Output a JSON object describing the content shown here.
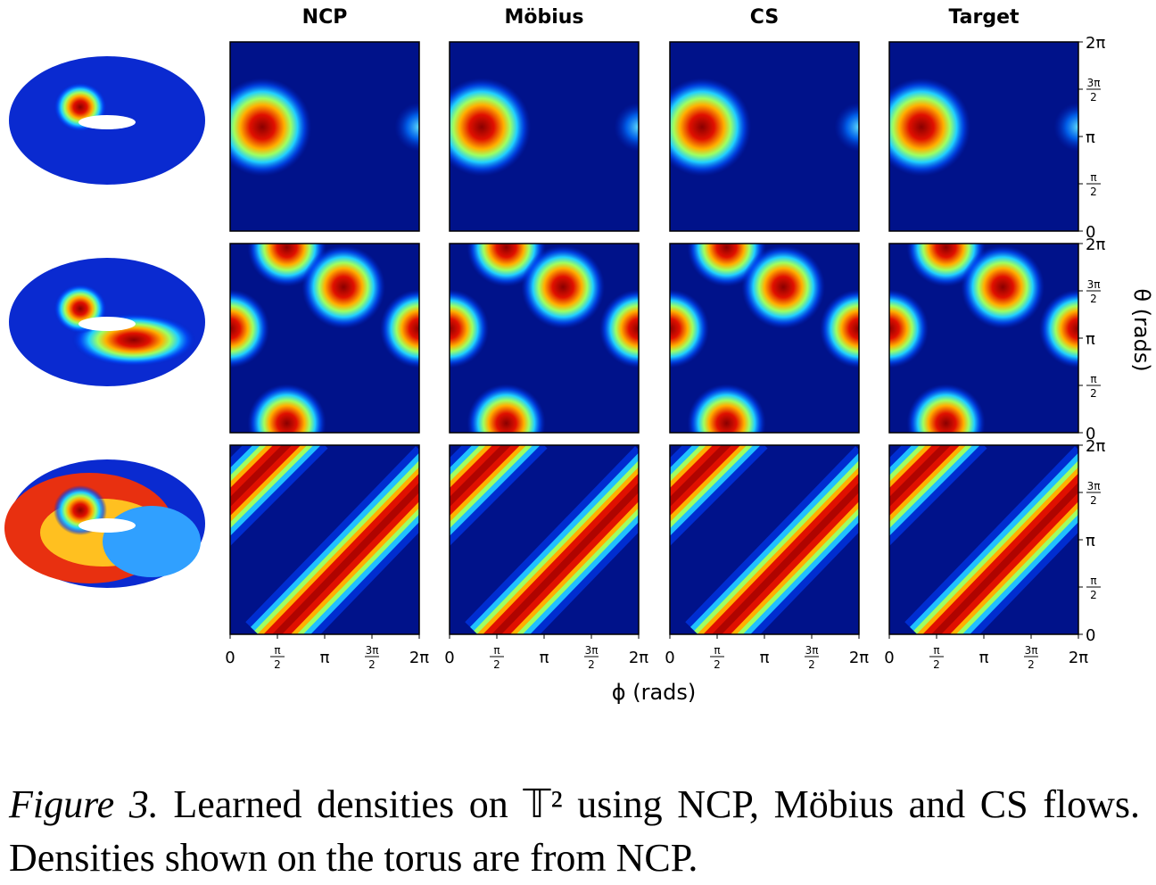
{
  "columns": [
    "NCP",
    "Möbius",
    "CS",
    "Target"
  ],
  "ticks": [
    "0",
    {
      "numerator": "π",
      "denominator": "2"
    },
    "π",
    {
      "numerator": "3π",
      "denominator": "2"
    },
    "2π"
  ],
  "x_label": "ϕ (rads)",
  "y_label": "θ (rads)",
  "caption": {
    "label": "Figure 3.",
    "text": "Learned densities on 𝕋² using NCP, Möbius and CS flows. Densities shown on the torus are from NCP."
  }
}
